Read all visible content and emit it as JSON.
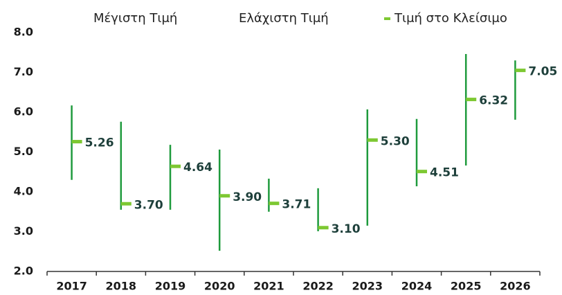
{
  "chart_data": {
    "type": "hlc",
    "categories": [
      "2017",
      "2018",
      "2019",
      "2020",
      "2021",
      "2022",
      "2023",
      "2024",
      "2025",
      "2026"
    ],
    "series": [
      {
        "name": "Μέγιστη Τιμή",
        "color": "#ffffff",
        "values": [
          6.17,
          5.76,
          5.18,
          5.06,
          4.33,
          4.09,
          6.07,
          5.83,
          7.46,
          7.3
        ]
      },
      {
        "name": "Ελάχιστη Τιμή",
        "color": "#ffffff",
        "values": [
          4.3,
          3.55,
          3.55,
          2.52,
          3.5,
          3.01,
          3.15,
          4.14,
          4.66,
          5.81
        ]
      },
      {
        "name": "Τιμή στο Κλείσιμο",
        "color": "#7dc832",
        "values": [
          5.26,
          3.7,
          4.64,
          3.9,
          3.71,
          3.1,
          5.3,
          4.51,
          6.32,
          7.05
        ],
        "value_labels": [
          "5.26",
          "3.70",
          "4.64",
          "3.90",
          "3.71",
          "3.10",
          "5.30",
          "4.51",
          "6.32",
          "7.05"
        ]
      }
    ],
    "range_color": "#1e9a3c",
    "ylim": [
      2,
      8
    ],
    "yticks": [
      {
        "value": 2,
        "label": "2.0"
      },
      {
        "value": 3,
        "label": "3.0"
      },
      {
        "value": 4,
        "label": "4.0"
      },
      {
        "value": 5,
        "label": "5.0"
      },
      {
        "value": 6,
        "label": "6.0"
      },
      {
        "value": 7,
        "label": "7.0"
      },
      {
        "value": 8,
        "label": "8.0"
      }
    ],
    "legend": "top"
  }
}
